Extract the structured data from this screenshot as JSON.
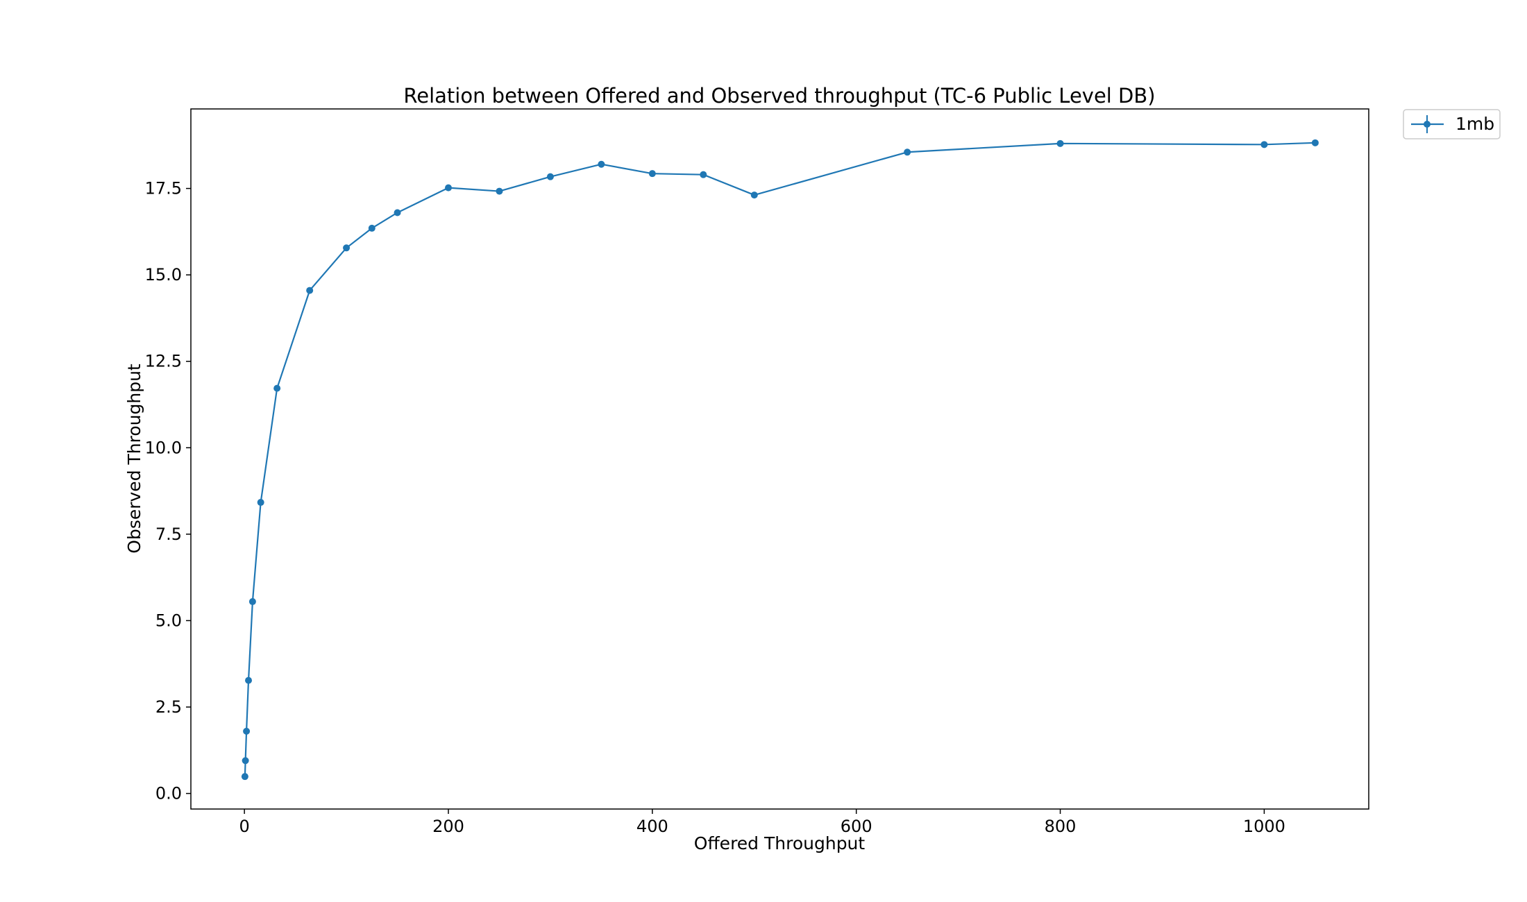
{
  "chart_data": {
    "type": "line",
    "title": "Relation between Offered and Observed throughput (TC-6  Public Level DB)",
    "xlabel": "Offered Throughput",
    "ylabel": "Observed Throughput",
    "xlim": [
      -52.5,
      1102.5
    ],
    "ylim": [
      -0.45,
      19.8
    ],
    "xticks": [
      0,
      200,
      400,
      600,
      800,
      1000
    ],
    "yticks": [
      0.0,
      2.5,
      5.0,
      7.5,
      10.0,
      12.5,
      15.0,
      17.5
    ],
    "grid": false,
    "legend_position": "outside-top-right",
    "series": [
      {
        "name": "1mb",
        "color": "#1f77b4",
        "marker": "circle",
        "x": [
          0.5,
          1,
          2,
          4,
          8,
          16,
          32,
          64,
          100,
          125,
          150,
          200,
          250,
          300,
          350,
          400,
          450,
          500,
          650,
          800,
          1000,
          1050
        ],
        "y": [
          0.49,
          0.95,
          1.8,
          3.27,
          5.55,
          8.42,
          11.72,
          14.55,
          15.78,
          16.35,
          16.8,
          17.52,
          17.42,
          17.84,
          18.2,
          17.93,
          17.9,
          17.31,
          18.55,
          18.8,
          18.77,
          18.82
        ]
      }
    ]
  }
}
